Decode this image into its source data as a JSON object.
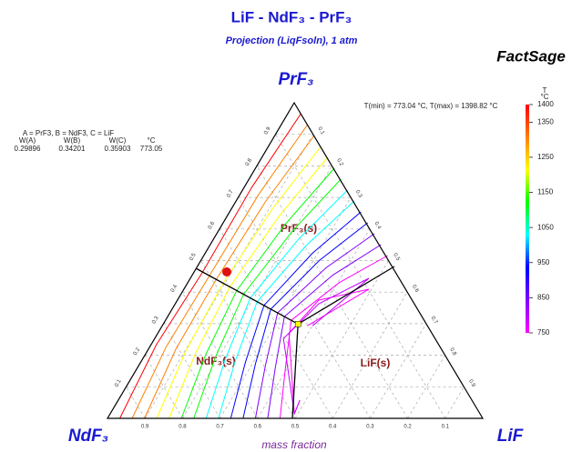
{
  "chart_data": {
    "type": "ternary",
    "title": "LiF - NdF₃ - PrF₃",
    "subtitle": "Projection (LiqFsoln), 1 atm",
    "brand": "FactSage",
    "vertices": {
      "top": "PrF₃",
      "left": "NdF₃",
      "right": "LiF"
    },
    "axis_label": "mass fraction",
    "ticks": [
      0.1,
      0.2,
      0.3,
      0.4,
      0.5,
      0.6,
      0.7,
      0.8,
      0.9
    ],
    "grid": true,
    "temperature_range": "T(min) = 773.04 °C, T(max) = 1398.82 °C",
    "colorbar": {
      "label": [
        "T",
        "°C"
      ],
      "lim": [
        750,
        1400
      ],
      "ticks": [
        1400,
        1350,
        1250,
        1150,
        1050,
        950,
        850,
        750
      ],
      "colors": [
        "#ff00ff",
        "#8000ff",
        "#0000ff",
        "#00ffff",
        "#00ff00",
        "#ffff00",
        "#ff8000",
        "#ff0000"
      ]
    },
    "phases": [
      "PrF₃(s)",
      "NdF₃(s)",
      "LiF(s)"
    ],
    "point": {
      "legend": "A = PrF3, B = NdF3, C = LiF",
      "columns": [
        "W(A)",
        "W(B)",
        "W(C)",
        "°C"
      ],
      "values": [
        0.29896,
        0.34201,
        0.35903,
        773.05
      ],
      "color": "#ffff00"
    }
  }
}
